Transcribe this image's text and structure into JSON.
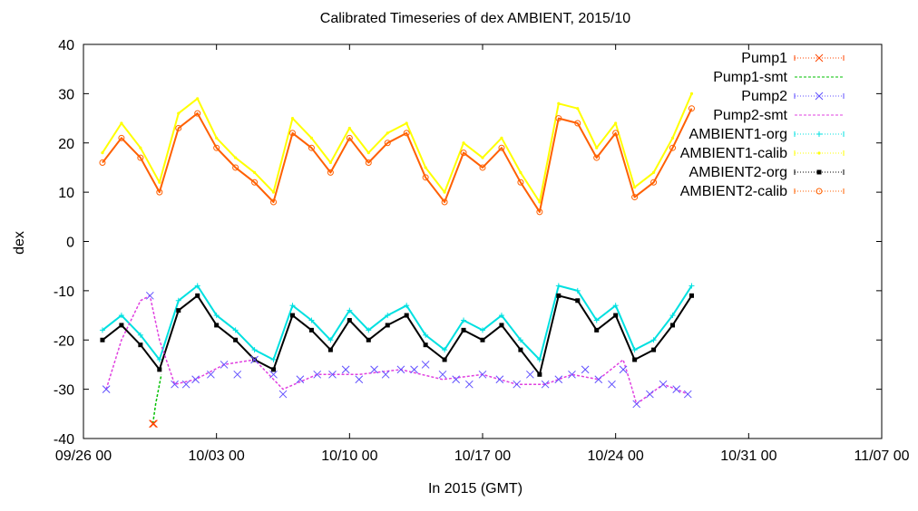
{
  "chart_data": {
    "type": "scatter",
    "title": "Calibrated Timeseries of dex AMBIENT, 2015/10",
    "xlabel": "In 2015 (GMT)",
    "ylabel": "dex",
    "xlim": [
      "09/26 00",
      "11/07 00"
    ],
    "ylim": [
      -40,
      40
    ],
    "x_ticks": [
      "09/26 00",
      "10/03 00",
      "10/10 00",
      "10/17 00",
      "10/24 00",
      "10/31 00",
      "11/07 00"
    ],
    "y_ticks": [
      "40",
      "30",
      "20",
      "10",
      "0",
      "-10",
      "-20",
      "-30",
      "-40"
    ],
    "grid": false,
    "legend_position": "top-right",
    "series": [
      {
        "name": "Pump1",
        "color": "#ff4500",
        "marker": "x",
        "x": [
          3.65,
          3.7
        ],
        "y": [
          -37,
          -37
        ]
      },
      {
        "name": "Pump1-smt",
        "color": "#00c000",
        "marker": "line",
        "x": [
          3.65,
          3.8,
          4.0,
          4.1
        ],
        "y": [
          -37,
          -33,
          -29,
          -27
        ]
      },
      {
        "name": "Pump2",
        "color": "#6050ff",
        "marker": "x",
        "x": [
          1.2,
          3.5,
          4.8,
          5.4,
          5.9,
          6.7,
          7.4,
          8.1,
          9.0,
          10.0,
          10.5,
          11.4,
          12.3,
          13.1,
          13.8,
          14.5,
          15.3,
          15.9,
          16.7,
          17.4,
          18.0,
          18.9,
          19.6,
          20.3,
          21.0,
          21.9,
          22.8,
          23.5,
          24.3,
          25.0,
          25.7,
          26.4,
          27.1,
          27.8,
          28.4,
          29.1,
          29.8,
          30.5,
          31.2,
          31.8
        ],
        "y": [
          -30,
          -11,
          -29,
          -29,
          -28,
          -27,
          -25,
          -27,
          -24,
          -27,
          -31,
          -28,
          -27,
          -27,
          -26,
          -28,
          -26,
          -27,
          -26,
          -26,
          -25,
          -27,
          -28,
          -29,
          -27,
          -28,
          -29,
          -27,
          -29,
          -28,
          -27,
          -26,
          -28,
          -29,
          -26,
          -33,
          -31,
          -29,
          -30,
          -31
        ]
      },
      {
        "name": "Pump2-smt",
        "color": "#e040e0",
        "marker": "line",
        "x": [
          1.2,
          2.0,
          3.0,
          3.5,
          4.0,
          4.8,
          5.9,
          7.4,
          9.0,
          10.5,
          12.3,
          14.5,
          16.7,
          18.9,
          21.0,
          22.8,
          24.3,
          25.7,
          27.1,
          28.4,
          28.8,
          29.1,
          29.8,
          30.5,
          31.2,
          31.8
        ],
        "y": [
          -30,
          -20,
          -12,
          -11,
          -20,
          -29,
          -28,
          -25,
          -24,
          -30,
          -27,
          -27,
          -26,
          -28,
          -27,
          -29,
          -29,
          -27,
          -28,
          -24,
          -29,
          -33,
          -31,
          -29,
          -30,
          -31
        ]
      },
      {
        "name": "AMBIENT1-org",
        "color": "#00e0e0",
        "marker": "cross",
        "x": [
          1.0,
          2.0,
          3.0,
          4.0,
          5.0,
          6.0,
          7.0,
          8.0,
          9.0,
          10.0,
          11.0,
          12.0,
          13.0,
          14.0,
          15.0,
          16.0,
          17.0,
          18.0,
          19.0,
          20.0,
          21.0,
          22.0,
          23.0,
          24.0,
          25.0,
          26.0,
          27.0,
          28.0,
          29.0,
          30.0,
          31.0,
          32.0
        ],
        "y": [
          -18,
          -15,
          -19,
          -24,
          -12,
          -9,
          -15,
          -18,
          -22,
          -24,
          -13,
          -16,
          -20,
          -14,
          -18,
          -15,
          -13,
          -19,
          -22,
          -16,
          -18,
          -15,
          -20,
          -24,
          -9,
          -10,
          -16,
          -13,
          -22,
          -20,
          -15,
          -9
        ]
      },
      {
        "name": "AMBIENT1-calib",
        "color": "#ffff00",
        "marker": "dot",
        "x": [
          1.0,
          2.0,
          3.0,
          4.0,
          5.0,
          6.0,
          7.0,
          8.0,
          9.0,
          10.0,
          11.0,
          12.0,
          13.0,
          14.0,
          15.0,
          16.0,
          17.0,
          18.0,
          19.0,
          20.0,
          21.0,
          22.0,
          23.0,
          24.0,
          25.0,
          26.0,
          27.0,
          28.0,
          29.0,
          30.0,
          31.0,
          32.0
        ],
        "y": [
          18,
          24,
          19,
          12,
          26,
          29,
          21,
          17,
          14,
          10,
          25,
          21,
          16,
          23,
          18,
          22,
          24,
          15,
          10,
          20,
          17,
          21,
          14,
          8,
          28,
          27,
          19,
          24,
          11,
          14,
          21,
          30
        ]
      },
      {
        "name": "AMBIENT2-org",
        "color": "#000000",
        "marker": "square",
        "x": [
          1.0,
          2.0,
          3.0,
          4.0,
          5.0,
          6.0,
          7.0,
          8.0,
          9.0,
          10.0,
          11.0,
          12.0,
          13.0,
          14.0,
          15.0,
          16.0,
          17.0,
          18.0,
          19.0,
          20.0,
          21.0,
          22.0,
          23.0,
          24.0,
          25.0,
          26.0,
          27.0,
          28.0,
          29.0,
          30.0,
          31.0,
          32.0
        ],
        "y": [
          -20,
          -17,
          -21,
          -26,
          -14,
          -11,
          -17,
          -20,
          -24,
          -26,
          -15,
          -18,
          -22,
          -16,
          -20,
          -17,
          -15,
          -21,
          -24,
          -18,
          -20,
          -17,
          -22,
          -27,
          -11,
          -12,
          -18,
          -15,
          -24,
          -22,
          -17,
          -11
        ]
      },
      {
        "name": "AMBIENT2-calib",
        "color": "#ff6000",
        "marker": "circle",
        "x": [
          1.0,
          2.0,
          3.0,
          4.0,
          5.0,
          6.0,
          7.0,
          8.0,
          9.0,
          10.0,
          11.0,
          12.0,
          13.0,
          14.0,
          15.0,
          16.0,
          17.0,
          18.0,
          19.0,
          20.0,
          21.0,
          22.0,
          23.0,
          24.0,
          25.0,
          26.0,
          27.0,
          28.0,
          29.0,
          30.0,
          31.0,
          32.0
        ],
        "y": [
          16,
          21,
          17,
          10,
          23,
          26,
          19,
          15,
          12,
          8,
          22,
          19,
          14,
          21,
          16,
          20,
          22,
          13,
          8,
          18,
          15,
          19,
          12,
          6,
          25,
          24,
          17,
          22,
          9,
          12,
          19,
          27
        ]
      }
    ]
  }
}
